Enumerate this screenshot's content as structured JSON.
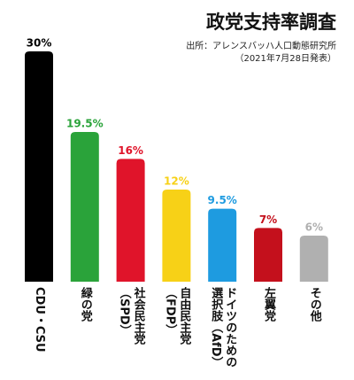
{
  "chart_data": {
    "type": "bar",
    "title": "政党支持率調査",
    "subtitle": [
      "出所：アレンスバッハ人口動態研究所",
      "（2021年7月28日発表）"
    ],
    "categories": [
      "CDU・CSU",
      "緑の党",
      "社会民主党\n（SPD）",
      "自由民主党\n（FDP）",
      "ドイツのための\n選択肢（AfD）",
      "左翼党",
      "その他"
    ],
    "values": [
      30,
      19.5,
      16,
      12,
      9.5,
      7,
      6
    ],
    "value_labels": [
      "30%",
      "19.5%",
      "16%",
      "12%",
      "9.5%",
      "7%",
      "6%"
    ],
    "colors": [
      "#000000",
      "#2aa33a",
      "#e0142a",
      "#f7d117",
      "#1e9be0",
      "#c4101c",
      "#b0b0b0"
    ],
    "ylim": [
      0,
      30
    ]
  }
}
